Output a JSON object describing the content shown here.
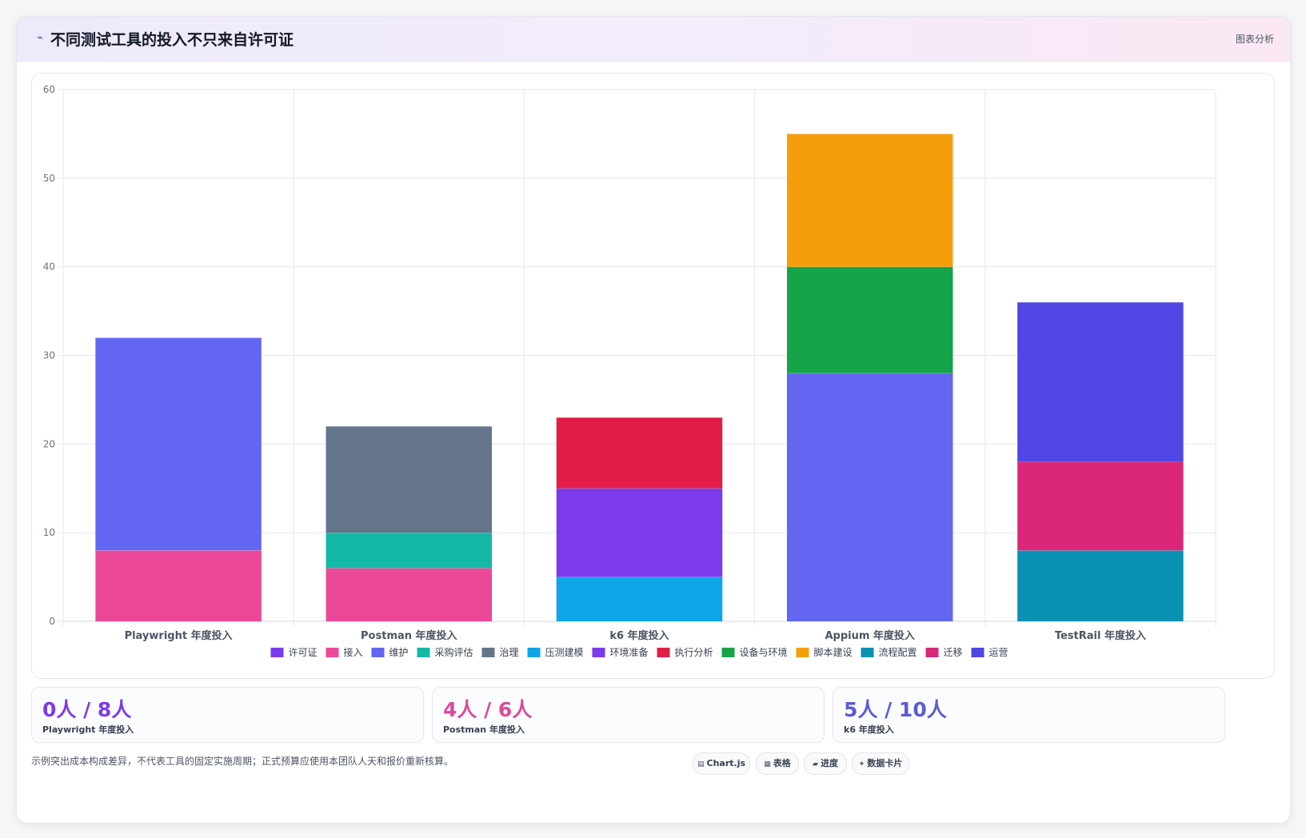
{
  "header": {
    "icon": "trend-icon",
    "title": "不同测试工具的投入不只来自许可证",
    "link_label": "图表分析"
  },
  "chart_data": {
    "type": "bar",
    "stacked": true,
    "title": "",
    "xlabel": "",
    "ylabel": "",
    "ylim": [
      0,
      60
    ],
    "yticks": [
      0,
      10,
      20,
      30,
      40,
      50,
      60
    ],
    "grid": true,
    "legend_position": "bottom",
    "categories": [
      "Playwright 年度投入",
      "Postman 年度投入",
      "k6 年度投入",
      "Appium 年度投入",
      "TestRail 年度投入"
    ],
    "series": [
      {
        "name": "许可证",
        "color": "#7c3aed",
        "values": [
          0,
          0,
          0,
          0,
          0
        ]
      },
      {
        "name": "接入",
        "color": "#ec4899",
        "values": [
          8,
          6,
          0,
          0,
          0
        ]
      },
      {
        "name": "维护",
        "color": "#6366f1",
        "values": [
          24,
          0,
          0,
          28,
          0
        ]
      },
      {
        "name": "采购评估",
        "color": "#14b8a6",
        "values": [
          0,
          4,
          0,
          0,
          0
        ]
      },
      {
        "name": "治理",
        "color": "#64748b",
        "values": [
          0,
          12,
          0,
          0,
          0
        ]
      },
      {
        "name": "压测建模",
        "color": "#0ea5e9",
        "values": [
          0,
          0,
          5,
          0,
          0
        ]
      },
      {
        "name": "环境准备",
        "color": "#7c3aed",
        "values": [
          0,
          0,
          10,
          0,
          0
        ]
      },
      {
        "name": "执行分析",
        "color": "#e11d48",
        "values": [
          0,
          0,
          8,
          0,
          0
        ]
      },
      {
        "name": "设备与环境",
        "color": "#16a34a",
        "values": [
          0,
          0,
          0,
          12,
          0
        ]
      },
      {
        "name": "脚本建设",
        "color": "#f59e0b",
        "values": [
          0,
          0,
          0,
          15,
          0
        ]
      },
      {
        "name": "流程配置",
        "color": "#0891b2",
        "values": [
          0,
          0,
          0,
          0,
          8
        ]
      },
      {
        "name": "迁移",
        "color": "#db2777",
        "values": [
          0,
          0,
          0,
          0,
          10
        ]
      },
      {
        "name": "运营",
        "color": "#4f46e5",
        "values": [
          0,
          0,
          0,
          0,
          18
        ]
      }
    ]
  },
  "stats": [
    {
      "value": "0人 / 8人",
      "label": "Playwright 年度投入",
      "color": "#7c3aed"
    },
    {
      "value": "4人 / 6人",
      "label": "Postman 年度投入",
      "color": "#db4a9a"
    },
    {
      "value": "5人 / 10人",
      "label": "k6 年度投入",
      "color": "#5b5bd6"
    }
  ],
  "footer": {
    "note": "示例突出成本构成差异，不代表工具的固定实施周期；正式预算应使用本团队人天和报价重新核算。"
  },
  "pills": [
    {
      "icon": "chart-icon",
      "glyph": "▤",
      "label": "Chart.js"
    },
    {
      "icon": "table-icon",
      "glyph": "▦",
      "label": "表格"
    },
    {
      "icon": "progress-icon",
      "glyph": "▰",
      "label": "进度"
    },
    {
      "icon": "sparkle-icon",
      "glyph": "✦",
      "label": "数据卡片"
    }
  ]
}
